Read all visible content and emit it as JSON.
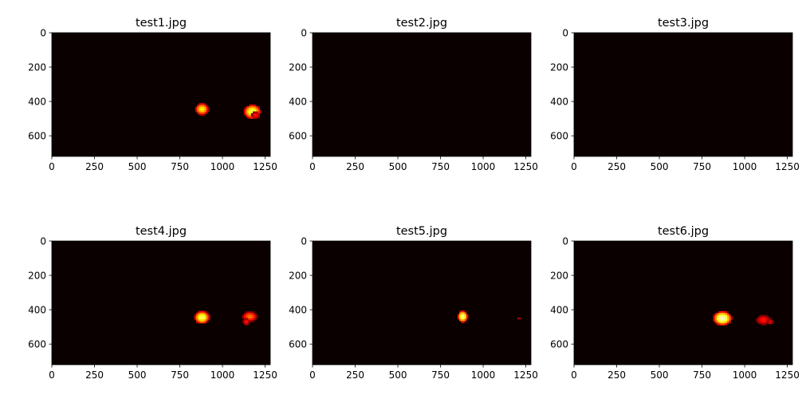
{
  "chart_data": [
    {
      "type": "heatmap",
      "title": "test1.jpg",
      "xlim": [
        0,
        1280
      ],
      "ylim": [
        720,
        0
      ],
      "x_ticks": [
        0,
        250,
        500,
        750,
        1000,
        1250
      ],
      "y_ticks": [
        0,
        200,
        400,
        600
      ],
      "x_tick_labels": [
        "0",
        "250",
        "500",
        "750",
        "1000",
        "1250"
      ],
      "y_tick_labels": [
        "0",
        "200",
        "400",
        "600"
      ],
      "colormap": "hot",
      "background": "#0b0000",
      "blobs": [
        {
          "x": 880,
          "y": 445,
          "rx": 40,
          "ry": 35,
          "peak": 0.75
        },
        {
          "x": 1175,
          "y": 460,
          "rx": 50,
          "ry": 42,
          "peak": 0.85
        },
        {
          "x": 1195,
          "y": 480,
          "rx": 28,
          "ry": 22,
          "peak": 0.4
        }
      ]
    },
    {
      "type": "heatmap",
      "title": "test2.jpg",
      "xlim": [
        0,
        1280
      ],
      "ylim": [
        720,
        0
      ],
      "x_ticks": [
        0,
        250,
        500,
        750,
        1000,
        1250
      ],
      "y_ticks": [
        0,
        200,
        400,
        600
      ],
      "x_tick_labels": [
        "0",
        "250",
        "500",
        "750",
        "1000",
        "1250"
      ],
      "y_tick_labels": [
        "0",
        "200",
        "400",
        "600"
      ],
      "colormap": "hot",
      "background": "#0b0000",
      "blobs": []
    },
    {
      "type": "heatmap",
      "title": "test3.jpg",
      "xlim": [
        0,
        1280
      ],
      "ylim": [
        720,
        0
      ],
      "x_ticks": [
        0,
        250,
        500,
        750,
        1000,
        1250
      ],
      "y_ticks": [
        0,
        200,
        400,
        600
      ],
      "x_tick_labels": [
        "0",
        "250",
        "500",
        "750",
        "1000",
        "1250"
      ],
      "y_tick_labels": [
        "0",
        "200",
        "400",
        "600"
      ],
      "colormap": "hot",
      "background": "#0b0000",
      "blobs": []
    },
    {
      "type": "heatmap",
      "title": "test4.jpg",
      "xlim": [
        0,
        1280
      ],
      "ylim": [
        720,
        0
      ],
      "x_ticks": [
        0,
        250,
        500,
        750,
        1000,
        1250
      ],
      "y_ticks": [
        0,
        200,
        400,
        600
      ],
      "x_tick_labels": [
        "0",
        "250",
        "500",
        "750",
        "1000",
        "1250"
      ],
      "y_tick_labels": [
        "0",
        "200",
        "400",
        "600"
      ],
      "colormap": "hot",
      "background": "#0b0000",
      "blobs": [
        {
          "x": 880,
          "y": 445,
          "rx": 45,
          "ry": 38,
          "peak": 0.85
        },
        {
          "x": 1160,
          "y": 440,
          "rx": 45,
          "ry": 30,
          "peak": 0.55
        },
        {
          "x": 1140,
          "y": 470,
          "rx": 22,
          "ry": 22,
          "peak": 0.4
        }
      ]
    },
    {
      "type": "heatmap",
      "title": "test5.jpg",
      "xlim": [
        0,
        1280
      ],
      "ylim": [
        720,
        0
      ],
      "x_ticks": [
        0,
        250,
        500,
        750,
        1000,
        1250
      ],
      "y_ticks": [
        0,
        200,
        400,
        600
      ],
      "x_tick_labels": [
        "0",
        "250",
        "500",
        "750",
        "1000",
        "1250"
      ],
      "y_tick_labels": [
        "0",
        "200",
        "400",
        "600"
      ],
      "colormap": "hot",
      "background": "#0b0000",
      "blobs": [
        {
          "x": 880,
          "y": 440,
          "rx": 30,
          "ry": 35,
          "peak": 0.9
        },
        {
          "x": 1210,
          "y": 450,
          "rx": 10,
          "ry": 5,
          "peak": 0.3
        }
      ]
    },
    {
      "type": "heatmap",
      "title": "test6.jpg",
      "xlim": [
        0,
        1280
      ],
      "ylim": [
        720,
        0
      ],
      "x_ticks": [
        0,
        250,
        500,
        750,
        1000,
        1250
      ],
      "y_ticks": [
        0,
        200,
        400,
        600
      ],
      "x_tick_labels": [
        "0",
        "250",
        "500",
        "750",
        "1000",
        "1250"
      ],
      "y_tick_labels": [
        "0",
        "200",
        "400",
        "600"
      ],
      "colormap": "hot",
      "background": "#0b0000",
      "blobs": [
        {
          "x": 870,
          "y": 450,
          "rx": 55,
          "ry": 42,
          "peak": 0.95
        },
        {
          "x": 1110,
          "y": 460,
          "rx": 45,
          "ry": 30,
          "peak": 0.4
        },
        {
          "x": 1150,
          "y": 470,
          "rx": 20,
          "ry": 18,
          "peak": 0.35
        }
      ]
    }
  ]
}
